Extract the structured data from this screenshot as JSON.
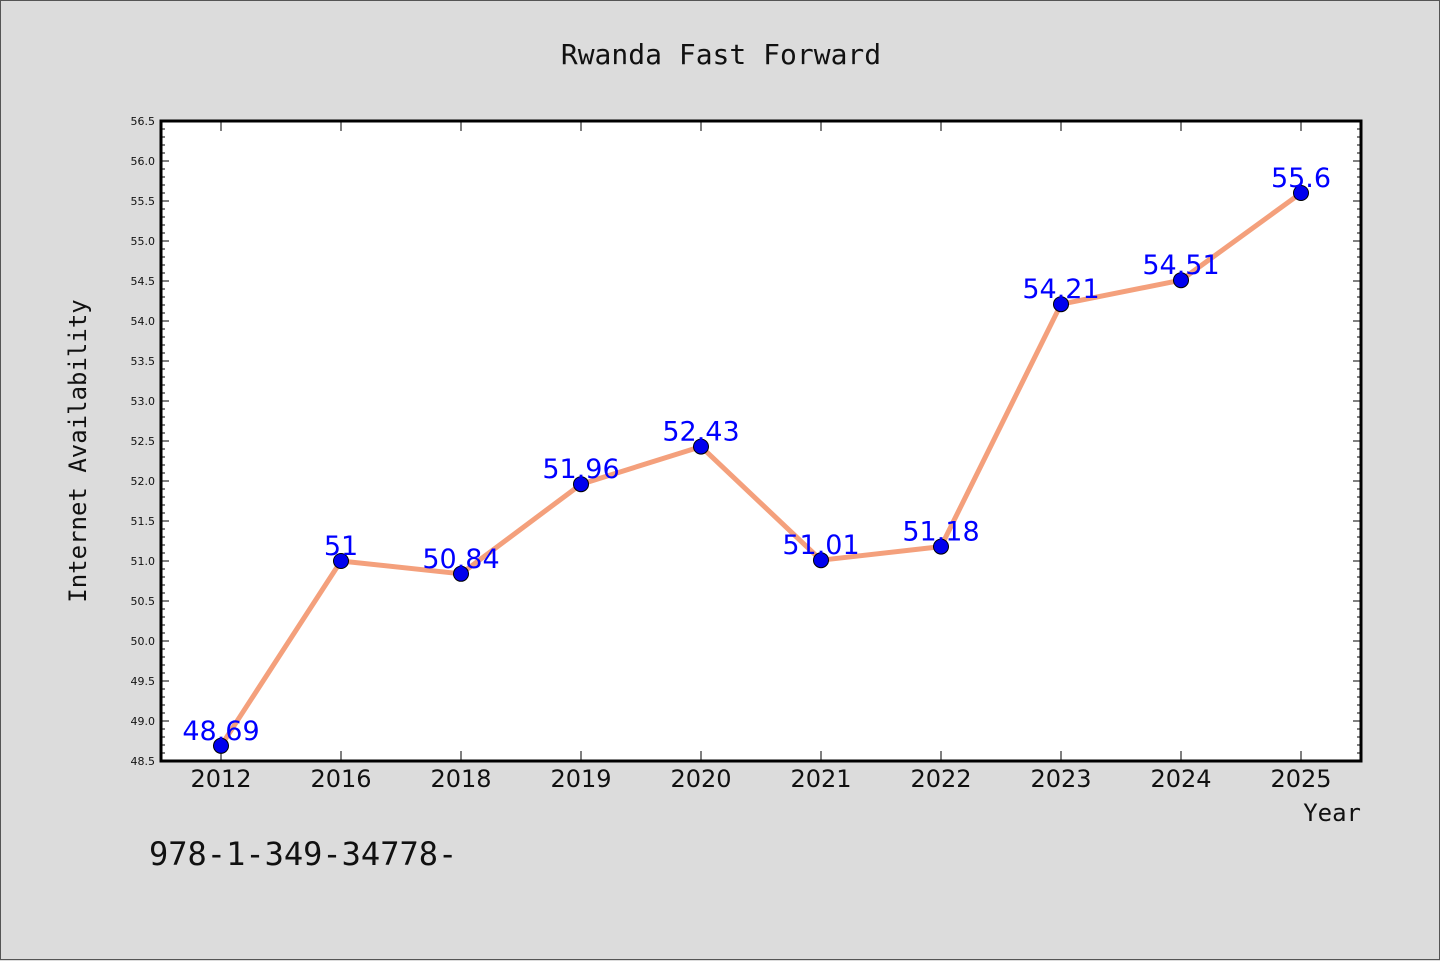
{
  "chart_data": {
    "type": "line",
    "title": "Rwanda Fast Forward",
    "xlabel": "Year",
    "ylabel": "Internet Availability",
    "categories": [
      "2012",
      "2016",
      "2018",
      "2019",
      "2020",
      "2021",
      "2022",
      "2023",
      "2024",
      "2025"
    ],
    "series": [
      {
        "values": [
          48.69,
          51,
          50.84,
          51.96,
          52.43,
          51.01,
          51.18,
          54.21,
          54.51,
          55.6
        ],
        "labels": [
          "48.69",
          "51",
          "50.84",
          "51.96",
          "52.43",
          "51.01",
          "51.18",
          "54.21",
          "54.51",
          "55.6"
        ],
        "line_color": "#f4a07c",
        "marker_color": "#0000ee",
        "label_color": "#0000ff"
      }
    ],
    "ylim": [
      48.5,
      56.5
    ],
    "yticks": [
      "48.5",
      "49.0",
      "49.5",
      "50.0",
      "50.5",
      "51.0",
      "51.5",
      "52.0",
      "52.5",
      "53.0",
      "53.5",
      "54.0",
      "54.5",
      "55.0",
      "55.5",
      "56.0",
      "56.5"
    ],
    "grid": false,
    "legend": "none"
  },
  "footer_text": "978-1-349-34778-"
}
